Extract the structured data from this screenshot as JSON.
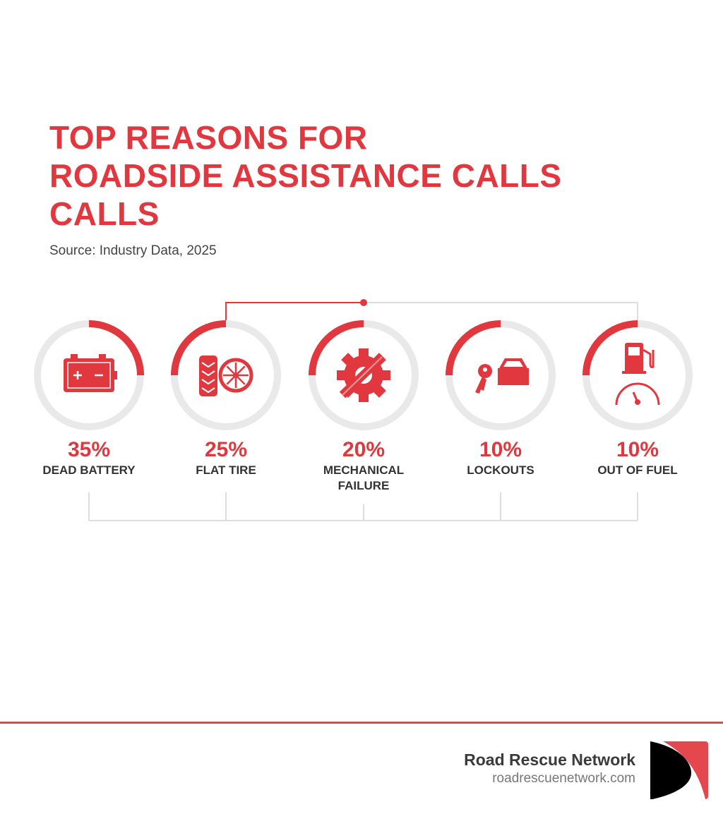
{
  "header": {
    "title_lines": [
      "TOP REASONS FOR",
      "ROADSIDE ASSISTANCE CALLS",
      "CALLS"
    ],
    "source": "Source: Industry Data, 2025"
  },
  "chart_data": {
    "type": "radial-progress",
    "title": "TOP REASONS FOR ROADSIDE ASSISTANCE CALLS CALLS",
    "categories": [
      "DEAD BATTERY",
      "FLAT TIRE",
      "MECHANICAL FAILURE",
      "LOCKOUTS",
      "OUT OF FUEL"
    ],
    "values": [
      35,
      25,
      20,
      10,
      10
    ],
    "labels": [
      "35%",
      "25%",
      "20%",
      "10%",
      "10%"
    ],
    "label_lines": [
      [
        "DEAD BATTERY"
      ],
      [
        "FLAT TIRE"
      ],
      [
        "MECHANICAL",
        "FAILURE"
      ],
      [
        "LOCKOUTS"
      ],
      [
        "OUT OF FUEL"
      ]
    ],
    "icons": [
      "battery-icon",
      "tire-icon",
      "gear-wrench-icon",
      "key-car-icon",
      "fuel-pump-gauge-icon"
    ],
    "unit": "%"
  },
  "colors": {
    "accent": "#e0383e",
    "track": "#e9e9e9",
    "text": "#333333"
  },
  "footer": {
    "brand_name": "Road Rescue Network",
    "brand_url": "roadrescuenetwork.com"
  }
}
